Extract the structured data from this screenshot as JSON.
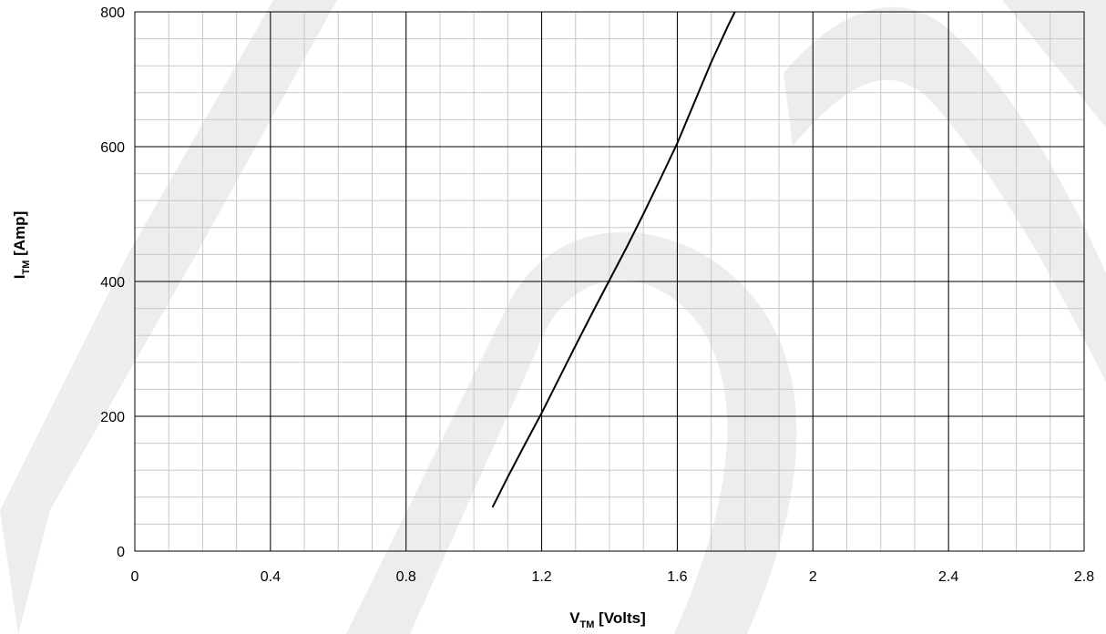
{
  "colors": {
    "background": "#ffffff",
    "minor_grid": "#c8c8c8",
    "major_grid": "#000000",
    "curve": "#000000",
    "watermark": "#ededed"
  },
  "watermark": {
    "icon": "HD-logo-watermark"
  },
  "chart_data": {
    "type": "line",
    "title": "",
    "xlabel": {
      "main": "V",
      "sub": "TM",
      "suffix": " [Volts]"
    },
    "ylabel": {
      "main": "I",
      "sub": "TM",
      "suffix": "  [Amp]"
    },
    "xlim": [
      0,
      2.8
    ],
    "ylim": [
      0,
      800
    ],
    "x_ticks": [
      0,
      0.4,
      0.8,
      1.2,
      1.6,
      2,
      2.4,
      2.8
    ],
    "x_tick_labels": [
      "0",
      "0.4",
      "0.8",
      "1.2",
      "1.6",
      "2",
      "2.4",
      "2.8"
    ],
    "y_ticks": [
      0,
      200,
      400,
      600,
      800
    ],
    "y_tick_labels": [
      "0",
      "200",
      "400",
      "600",
      "800"
    ],
    "grid": {
      "major": true,
      "minor": true,
      "x_minor_step": 0.1,
      "y_minor_step": 40
    },
    "legend": "none",
    "series": [
      {
        "x": [
          1.055,
          1.1,
          1.15,
          1.2,
          1.25,
          1.3,
          1.35,
          1.4,
          1.45,
          1.5,
          1.55,
          1.6,
          1.65,
          1.7,
          1.75,
          1.77
        ],
        "y": [
          65,
          110,
          158,
          205,
          255,
          305,
          354,
          402,
          450,
          500,
          552,
          605,
          665,
          725,
          780,
          800
        ]
      }
    ]
  }
}
